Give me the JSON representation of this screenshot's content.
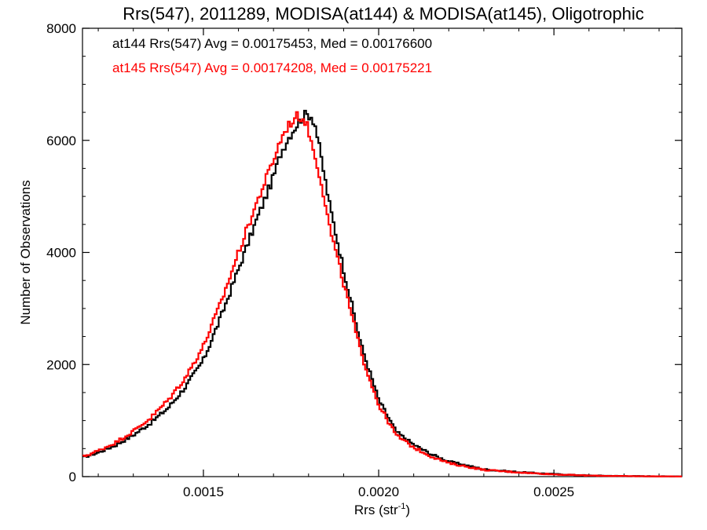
{
  "chart_data": {
    "type": "line",
    "title": "Rrs(547), 2011289, MODISA(at144) & MODISA(at145), Oligotrophic",
    "xlabel_base": "Rrs (str",
    "xlabel_sup": "-1",
    "xlabel_close": ")",
    "ylabel": "Number of Observations",
    "xlim": [
      0.001155,
      0.002865
    ],
    "ylim": [
      0,
      8000
    ],
    "x_ticks": [
      0.0015,
      0.002,
      0.0025
    ],
    "x_tick_labels": [
      "0.0015",
      "0.0020",
      "0.0025"
    ],
    "y_ticks": [
      0,
      2000,
      4000,
      6000,
      8000
    ],
    "y_tick_labels": [
      "0",
      "2000",
      "4000",
      "6000",
      "8000"
    ],
    "step_style": "histogram",
    "legend_placement": "top-left",
    "series": [
      {
        "key": "at144",
        "legend_text": "at144 Rrs(547) Avg = 0.00175453, Med = 0.00176600",
        "color": "#000000",
        "x": [
          0.00115,
          0.0012,
          0.00125,
          0.0013,
          0.00135,
          0.0014,
          0.00145,
          0.0015,
          0.00155,
          0.0016,
          0.00165,
          0.0017,
          0.00172,
          0.00174,
          0.00176,
          0.00177,
          0.00178,
          0.00179,
          0.0018,
          0.00181,
          0.00182,
          0.00184,
          0.00186,
          0.0019,
          0.00195,
          0.002,
          0.00205,
          0.0021,
          0.00215,
          0.0022,
          0.0023,
          0.0024,
          0.0025,
          0.0026,
          0.0027,
          0.0028,
          0.00287
        ],
        "y": [
          330,
          430,
          560,
          740,
          960,
          1230,
          1610,
          2080,
          2850,
          3700,
          4550,
          5350,
          5760,
          6020,
          6220,
          6300,
          6400,
          6450,
          6460,
          6420,
          6250,
          5550,
          4850,
          3700,
          2350,
          1370,
          800,
          570,
          400,
          270,
          130,
          80,
          45,
          20,
          10,
          5,
          3
        ]
      },
      {
        "key": "at145",
        "legend_text": "at145 Rrs(547) Avg = 0.00174208, Med = 0.00175221",
        "color": "#ff0000",
        "x": [
          0.00115,
          0.0012,
          0.00125,
          0.0013,
          0.00135,
          0.0014,
          0.00145,
          0.0015,
          0.00155,
          0.0016,
          0.00165,
          0.0017,
          0.00172,
          0.00174,
          0.00176,
          0.00177,
          0.00178,
          0.00179,
          0.0018,
          0.00181,
          0.00182,
          0.00184,
          0.00186,
          0.0019,
          0.00195,
          0.002,
          0.00205,
          0.0021,
          0.00215,
          0.0022,
          0.0023,
          0.0024,
          0.0025,
          0.0026,
          0.0027,
          0.0028,
          0.00287
        ],
        "y": [
          340,
          460,
          610,
          810,
          1050,
          1370,
          1780,
          2330,
          3100,
          4000,
          4850,
          5650,
          6000,
          6250,
          6380,
          6440,
          6400,
          6350,
          6180,
          5900,
          5700,
          5150,
          4450,
          3450,
          2200,
          1280,
          740,
          520,
          360,
          240,
          120,
          75,
          40,
          18,
          9,
          4,
          2
        ]
      }
    ]
  }
}
